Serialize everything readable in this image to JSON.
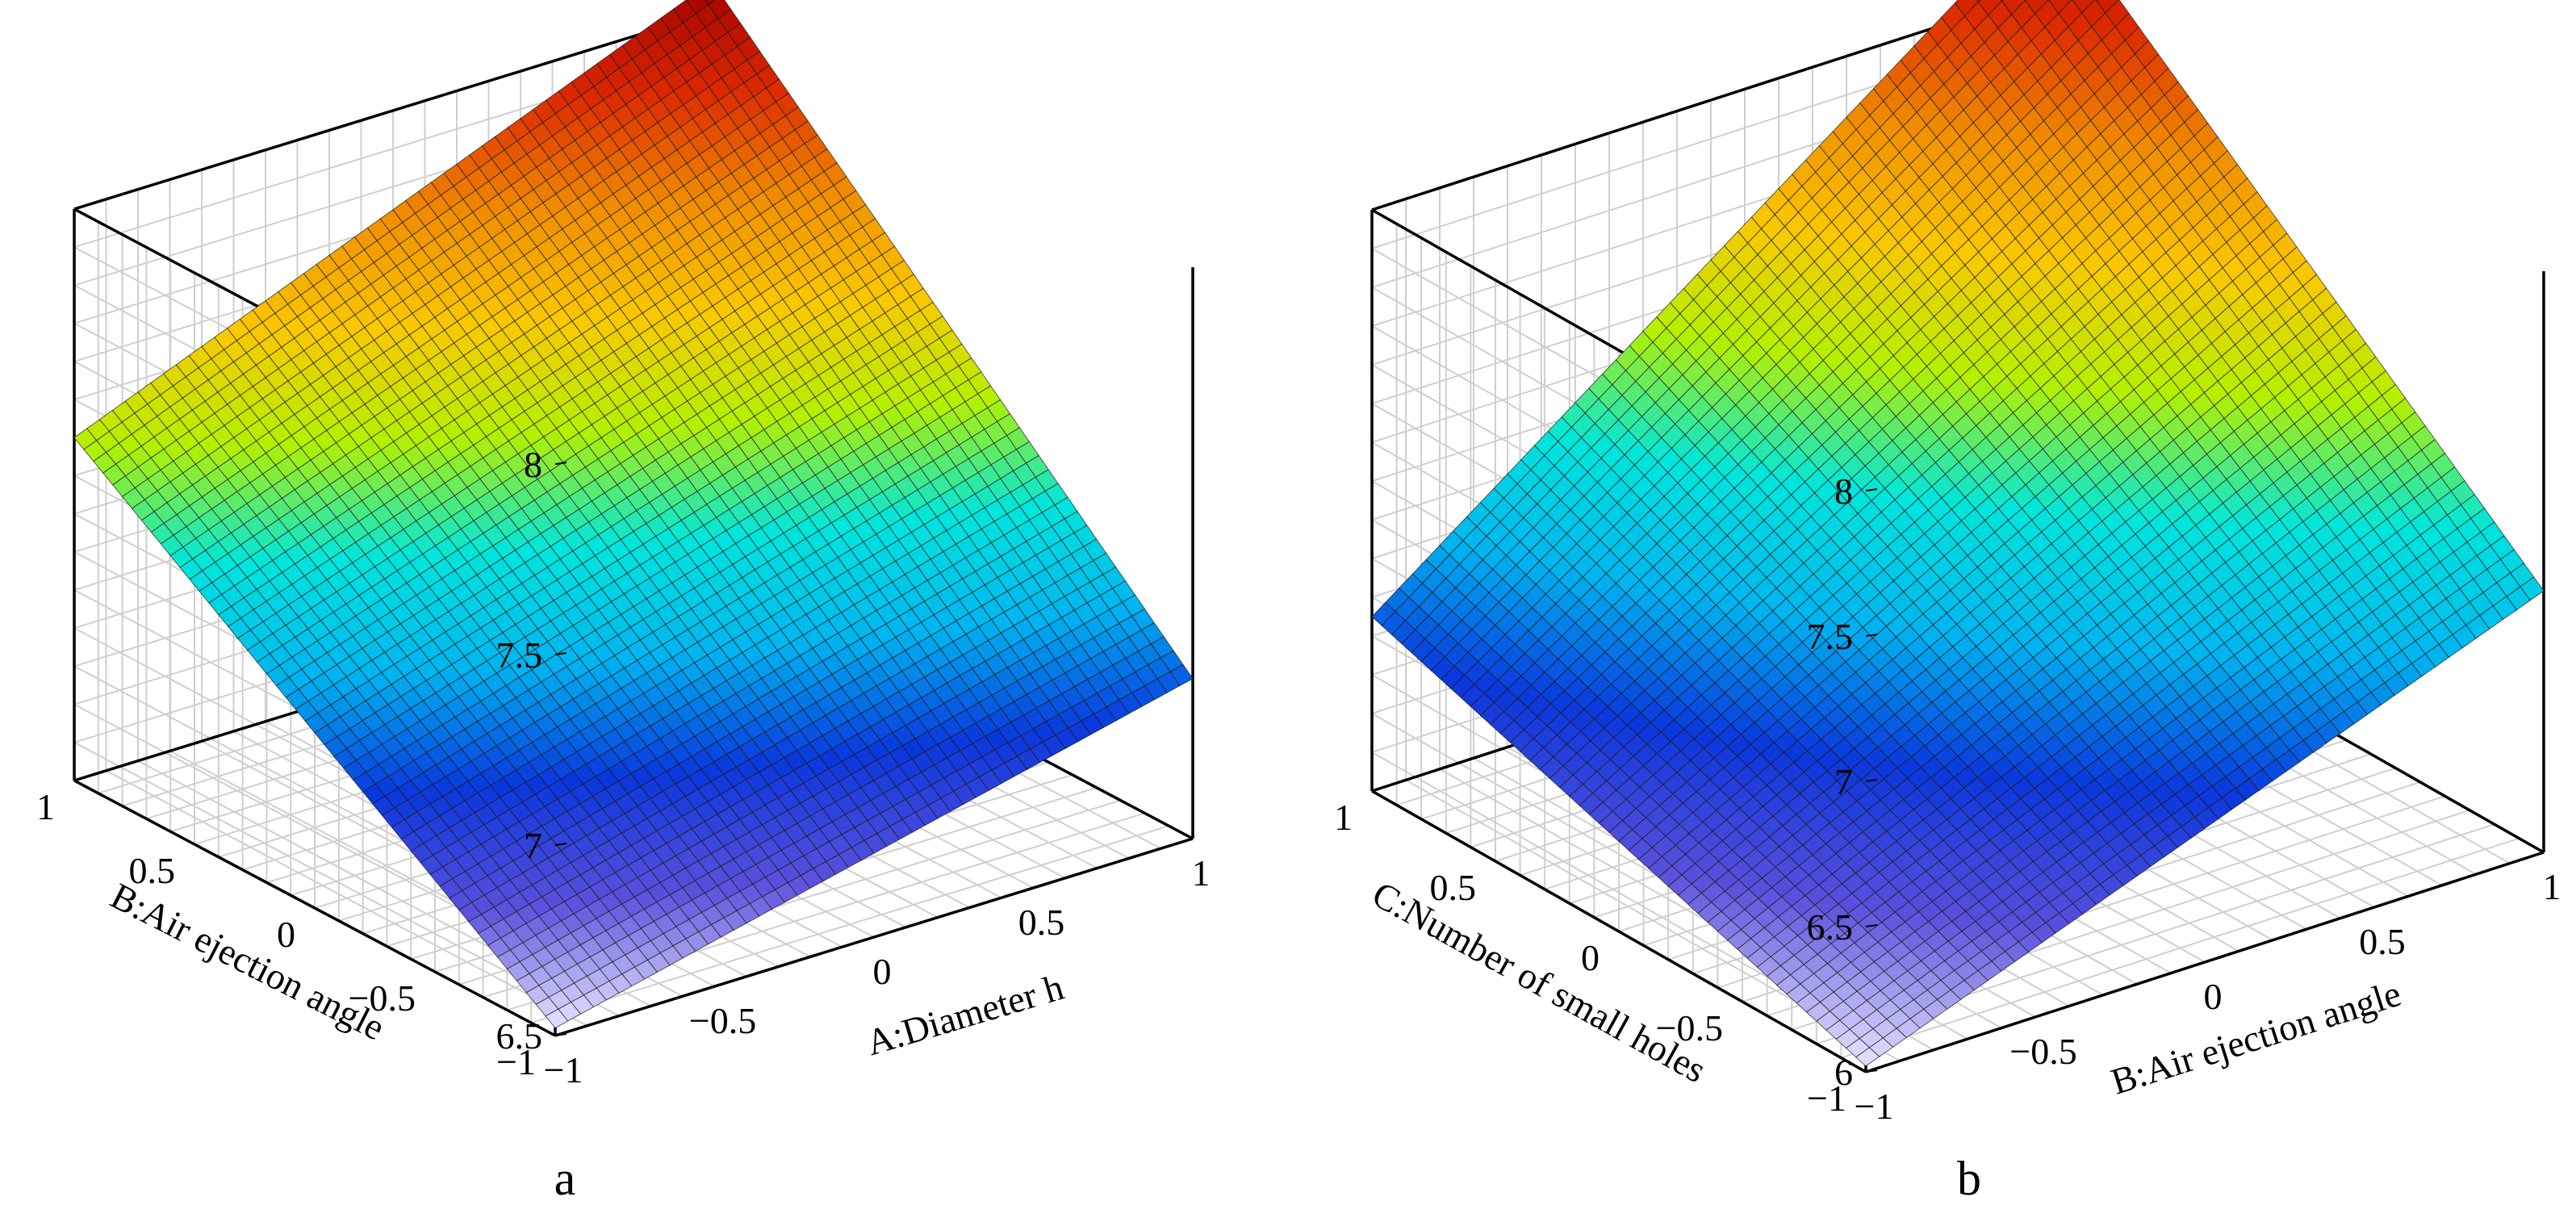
{
  "figure": {
    "panel_labels": [
      "a",
      "b"
    ]
  },
  "chart_data": [
    {
      "type": "surface",
      "panel": "a",
      "title": "",
      "xlabel": "A:Diameter h",
      "ylabel": "B:Air ejection angle",
      "zlabel": "",
      "xlim": [
        -1,
        1
      ],
      "ylim": [
        -1,
        1
      ],
      "zlim": [
        6.5,
        8
      ],
      "x_ticks": [
        "−1",
        "−0.5",
        "0",
        "0.5",
        "1"
      ],
      "y_ticks": [
        "−1",
        "−0.5",
        "0",
        "0.5",
        "1"
      ],
      "z_ticks": [
        "6.5",
        "7",
        "7.5",
        "8"
      ],
      "colormap": [
        "#e6e6ff",
        "#5a50dc",
        "#0a37dc",
        "#00b4f0",
        "#00e6dc",
        "#b4f000",
        "#fac800",
        "#f08c00",
        "#dc2800",
        "#a00000"
      ],
      "corners": [
        {
          "x": -1,
          "y": -1,
          "z": 6.52
        },
        {
          "x": 1,
          "y": -1,
          "z": 6.92
        },
        {
          "x": -1,
          "y": 1,
          "z": 7.4
        },
        {
          "x": 1,
          "y": 1,
          "z": 8.08
        }
      ],
      "grid": true
    },
    {
      "type": "surface",
      "panel": "b",
      "title": "",
      "xlabel": "B:Air ejection angle",
      "ylabel": "C:Number of small holes",
      "zlabel": "",
      "xlim": [
        -1,
        1
      ],
      "ylim": [
        -1,
        1
      ],
      "zlim": [
        6,
        8
      ],
      "x_ticks": [
        "−1",
        "−0.5",
        "0",
        "0.5",
        "1"
      ],
      "y_ticks": [
        "−1",
        "−0.5",
        "0",
        "0.5",
        "1"
      ],
      "z_ticks": [
        "6",
        "6.5",
        "7",
        "7.5",
        "8"
      ],
      "colormap": [
        "#e6e6ff",
        "#5a50dc",
        "#0a37dc",
        "#00b4f0",
        "#00e6dc",
        "#b4f000",
        "#fac800",
        "#f08c00",
        "#dc2800",
        "#a00000"
      ],
      "corners": [
        {
          "x": -1,
          "y": -1,
          "z": 6.02
        },
        {
          "x": 1,
          "y": -1,
          "z": 6.9
        },
        {
          "x": -1,
          "y": 1,
          "z": 6.6
        },
        {
          "x": 1,
          "y": 1,
          "z": 8.3
        }
      ],
      "grid": true
    }
  ]
}
